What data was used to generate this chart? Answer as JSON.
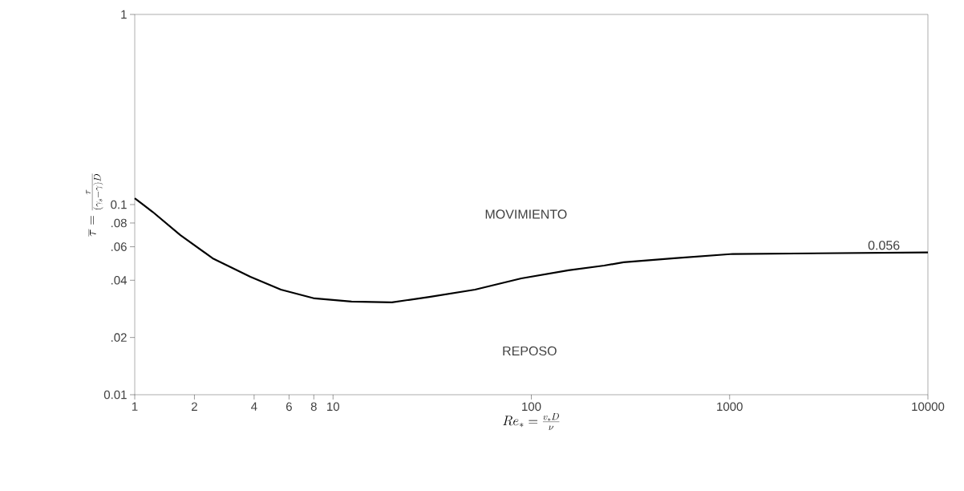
{
  "chart_data": {
    "type": "line",
    "xlabel": "Re_*=\\frac{v_* D}{\\nu}",
    "ylabel": "\\overline{\\tau}=\\frac{\\tau}{(\\gamma_s-\\gamma)D}",
    "x": [
      1,
      1.23,
      1.7,
      2.47,
      3.83,
      5.46,
      8.07,
      12.4,
      19.8,
      30.6,
      52,
      89,
      154,
      233,
      292,
      526,
      1038,
      10000
    ],
    "series": [
      {
        "color": "#000000",
        "line_style": "solid",
        "values": [
          0.108,
          0.0916,
          0.0691,
          0.0522,
          0.0417,
          0.0357,
          0.0321,
          0.0309,
          0.0306,
          0.0327,
          0.0357,
          0.0409,
          0.0451,
          0.0478,
          0.0497,
          0.0522,
          0.055,
          0.056
        ]
      }
    ],
    "log": "xy",
    "xlim": [
      1,
      10000
    ],
    "ylim": [
      0.01,
      1
    ],
    "xticks": [
      1,
      2,
      4,
      6,
      8,
      10,
      100,
      1000,
      10000
    ],
    "yticks": [
      {
        "value": 0.01,
        "label": "0.01"
      },
      {
        "value": 0.02,
        "label": ".02"
      },
      {
        "value": 0.04,
        "label": ".04"
      },
      {
        "value": 0.06,
        "label": ".06"
      },
      {
        "value": 0.08,
        "label": ".08"
      },
      {
        "value": 0.1,
        "label": "0.1"
      },
      {
        "value": 1,
        "label": "1"
      }
    ],
    "annotations": [
      "MOVIMIENTO",
      "REPOSO",
      {
        "text": "0.056",
        "x": 6000,
        "y": 0.056
      }
    ]
  }
}
